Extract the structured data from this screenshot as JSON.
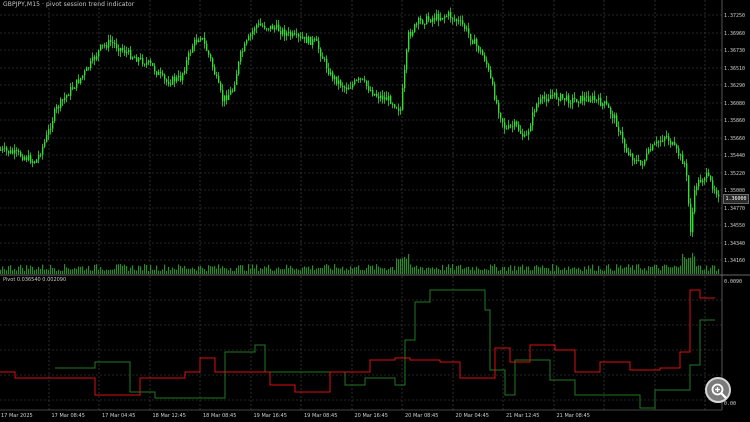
{
  "window": {
    "title": "GBPJPY,M15 · pivot session trend indicator",
    "indicator_label": "Pivot 0.036540 0.002090",
    "current_price": "1.36000"
  },
  "colors": {
    "background": "#000000",
    "grid": "#4a4a4a",
    "candles": "#33dd33",
    "volume": "#2d8a2d",
    "ind_up": "#1e7a1e",
    "ind_down": "#dd1111"
  },
  "axis": {
    "price_ticks": [
      "1.37250",
      "1.36960",
      "1.36730",
      "1.36510",
      "1.36290",
      "1.36080",
      "1.35860",
      "1.35660",
      "1.35440",
      "1.35220",
      "1.35000",
      "1.34770",
      "1.34550",
      "1.34340",
      "1.34160"
    ],
    "indicator_ticks": [
      "0.0090",
      "0.00"
    ],
    "time_ticks": [
      "17 Mar 2025",
      "17 Mar 08:45",
      "17 Mar 04:45",
      "18 Mar 12:45",
      "18 Mar 08:45",
      "19 Mar 16:45",
      "19 Mar 08:45",
      "20 Mar 16:45",
      "20 Mar 08:45",
      "20 Mar 04:45",
      "21 Mar 12:45",
      "21 Mar 08:45"
    ]
  },
  "icons": {
    "zoom": "zoom-in-magnifier-icon"
  }
}
